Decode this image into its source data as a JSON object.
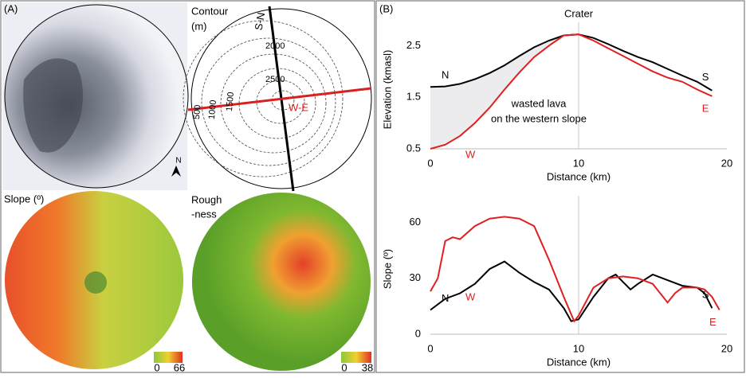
{
  "panel_a": {
    "label": "(A)",
    "contour_title": [
      "Contour",
      "(m)"
    ],
    "profile_sn": "S-N",
    "profile_we": "W-E",
    "contour_labels": [
      2000,
      2500,
      1500,
      1000,
      500
    ],
    "slope_title": "Slope (º)",
    "rough_title": [
      "Rough",
      "-ness"
    ],
    "slope_scale": [
      0,
      66
    ],
    "rough_scale": [
      0,
      38
    ],
    "north": "N"
  },
  "panel_b": {
    "label": "(B)"
  },
  "chart_data": [
    {
      "type": "line",
      "title": "Crater",
      "xlabel": "Distance (km)",
      "ylabel": "Elevation (kmasl)",
      "annotation": [
        "wasted lava",
        "on the western slope"
      ],
      "x": [
        0,
        1,
        2,
        3,
        4,
        5,
        6,
        7,
        8,
        9,
        10,
        11,
        12,
        13,
        14,
        15,
        16,
        17,
        18,
        19
      ],
      "series": [
        {
          "color": "#000000",
          "start_label": "N",
          "end_label": "S",
          "values": [
            1.7,
            1.71,
            1.76,
            1.85,
            1.97,
            2.12,
            2.3,
            2.47,
            2.6,
            2.7,
            2.72,
            2.65,
            2.53,
            2.4,
            2.28,
            2.18,
            2.05,
            1.92,
            1.8,
            1.63
          ]
        },
        {
          "color": "#e02020",
          "start_label": "W",
          "end_label": "E",
          "values": [
            0.5,
            0.58,
            0.75,
            1.0,
            1.3,
            1.65,
            1.98,
            2.28,
            2.5,
            2.7,
            2.72,
            2.6,
            2.45,
            2.3,
            2.15,
            2.0,
            1.88,
            1.8,
            1.65,
            1.52
          ]
        }
      ],
      "xlim": [
        0,
        20
      ],
      "xticks": [
        0,
        10,
        20
      ],
      "ylim": [
        0.5,
        2.8
      ],
      "yticks": [
        0.5,
        1.5,
        2.5
      ],
      "vline": 10,
      "shade_between": true
    },
    {
      "type": "line",
      "xlabel": "Distance (km)",
      "ylabel": "Slope (º)",
      "series": [
        {
          "color": "#000000",
          "start_label": "N",
          "end_label": "S",
          "x": [
            0,
            1,
            2,
            3,
            4,
            5,
            6,
            7,
            8,
            9,
            9.5,
            10,
            11,
            12,
            12.5,
            13,
            13.5,
            14,
            15,
            16,
            17,
            18,
            18.5,
            19
          ],
          "values": [
            13,
            19,
            22,
            27,
            35,
            39,
            33,
            28,
            24,
            14,
            7,
            8,
            20,
            30,
            32,
            28,
            24,
            27,
            32,
            29,
            26,
            25,
            22,
            14
          ]
        },
        {
          "color": "#e02020",
          "start_label": "W",
          "end_label": "E",
          "x": [
            0,
            0.5,
            1,
            1.5,
            2,
            3,
            4,
            5,
            6,
            7,
            8,
            9,
            9.7,
            10,
            11,
            12,
            13,
            14,
            15,
            16,
            16.5,
            17,
            18,
            18.5,
            19,
            19.5
          ],
          "values": [
            23,
            30,
            50,
            52,
            51,
            58,
            62,
            63,
            62,
            58,
            40,
            20,
            7,
            10,
            25,
            30,
            31,
            30,
            27,
            17,
            22,
            25,
            25,
            24,
            20,
            13
          ]
        }
      ],
      "xlim": [
        0,
        20
      ],
      "xticks": [
        0,
        10,
        20
      ],
      "ylim": [
        0,
        70
      ],
      "yticks": [
        0,
        30,
        60
      ],
      "vline": 10
    }
  ]
}
